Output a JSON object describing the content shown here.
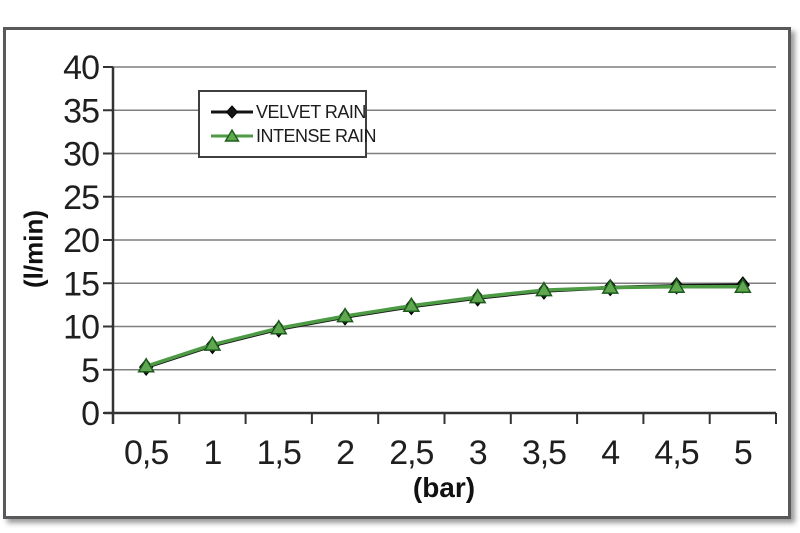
{
  "chart_data": {
    "type": "line",
    "title": "",
    "xlabel": "(bar)",
    "ylabel": "(l/min)",
    "x_tick_labels": [
      "0,5",
      "1",
      "1,5",
      "2",
      "2,5",
      "3",
      "3,5",
      "4",
      "4,5",
      "5"
    ],
    "x_values": [
      0.5,
      1,
      1.5,
      2,
      2.5,
      3,
      3.5,
      4,
      4.5,
      5
    ],
    "ylim": [
      0,
      40
    ],
    "y_tick_step": 5,
    "grid": "horizontal",
    "legend_position": "top-center-inside",
    "series": [
      {
        "name": "VELVET RAIN",
        "marker": "diamond",
        "line_color": "#141414",
        "marker_fill": "#141414",
        "marker_edge": "#000000",
        "values": [
          5.3,
          7.8,
          9.7,
          11.1,
          12.3,
          13.3,
          14.1,
          14.5,
          14.7,
          14.8
        ]
      },
      {
        "name": "INTENSE RAIN",
        "marker": "triangle",
        "line_color": "#4d9b45",
        "marker_fill": "#5fa84f",
        "marker_edge": "#1d5a1d",
        "values": [
          5.4,
          7.9,
          9.8,
          11.2,
          12.4,
          13.4,
          14.2,
          14.5,
          14.6,
          14.6
        ]
      }
    ]
  },
  "colors": {
    "background": "#ffffff",
    "frame_border": "#58595b",
    "gridline": "#7f7f7f",
    "axis": "#333333",
    "tick_label": "#1f1f1f",
    "velvet_rain": "#141414",
    "intense_rain": "#4d9b45"
  }
}
